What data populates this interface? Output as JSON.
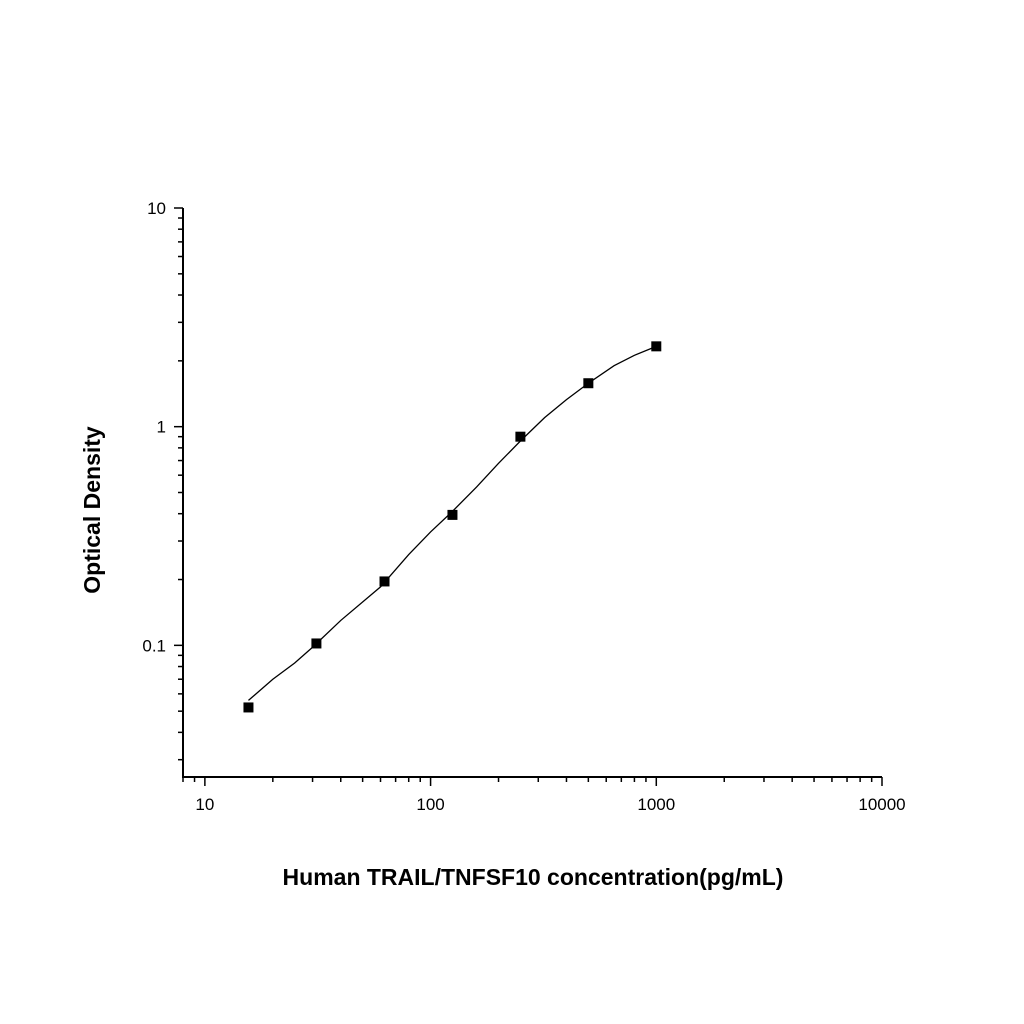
{
  "chart_data": {
    "type": "scatter",
    "title": "",
    "xlabel": "Human TRAIL/TNFSF10 concentration(pg/mL)",
    "ylabel": "Optical Density",
    "x_scale": "log",
    "y_scale": "log",
    "xlim": [
      8,
      10000
    ],
    "ylim": [
      0.025,
      10
    ],
    "x_ticks": [
      10,
      100,
      1000,
      10000
    ],
    "x_tick_labels": [
      "10",
      "100",
      "1000",
      "10000"
    ],
    "y_ticks": [
      0.1,
      1,
      10
    ],
    "y_tick_labels": [
      "0.1",
      "1",
      "10"
    ],
    "grid": false,
    "legend": "none",
    "series": [
      {
        "marker": "square",
        "color": "#000000",
        "x": [
          15.6,
          31.2,
          62.5,
          125,
          250,
          500,
          1000
        ],
        "y": [
          0.052,
          0.102,
          0.196,
          0.395,
          0.9,
          1.58,
          2.33
        ]
      }
    ],
    "fit_curve": {
      "color": "#000000",
      "x_range": [
        15.6,
        1000
      ],
      "points": [
        [
          15.6,
          0.056
        ],
        [
          20,
          0.07
        ],
        [
          25,
          0.083
        ],
        [
          30,
          0.098
        ],
        [
          40,
          0.13
        ],
        [
          60,
          0.185
        ],
        [
          80,
          0.26
        ],
        [
          100,
          0.33
        ],
        [
          125,
          0.41
        ],
        [
          160,
          0.53
        ],
        [
          200,
          0.68
        ],
        [
          250,
          0.86
        ],
        [
          320,
          1.1
        ],
        [
          400,
          1.33
        ],
        [
          500,
          1.58
        ],
        [
          650,
          1.9
        ],
        [
          800,
          2.12
        ],
        [
          1000,
          2.33
        ]
      ]
    }
  }
}
